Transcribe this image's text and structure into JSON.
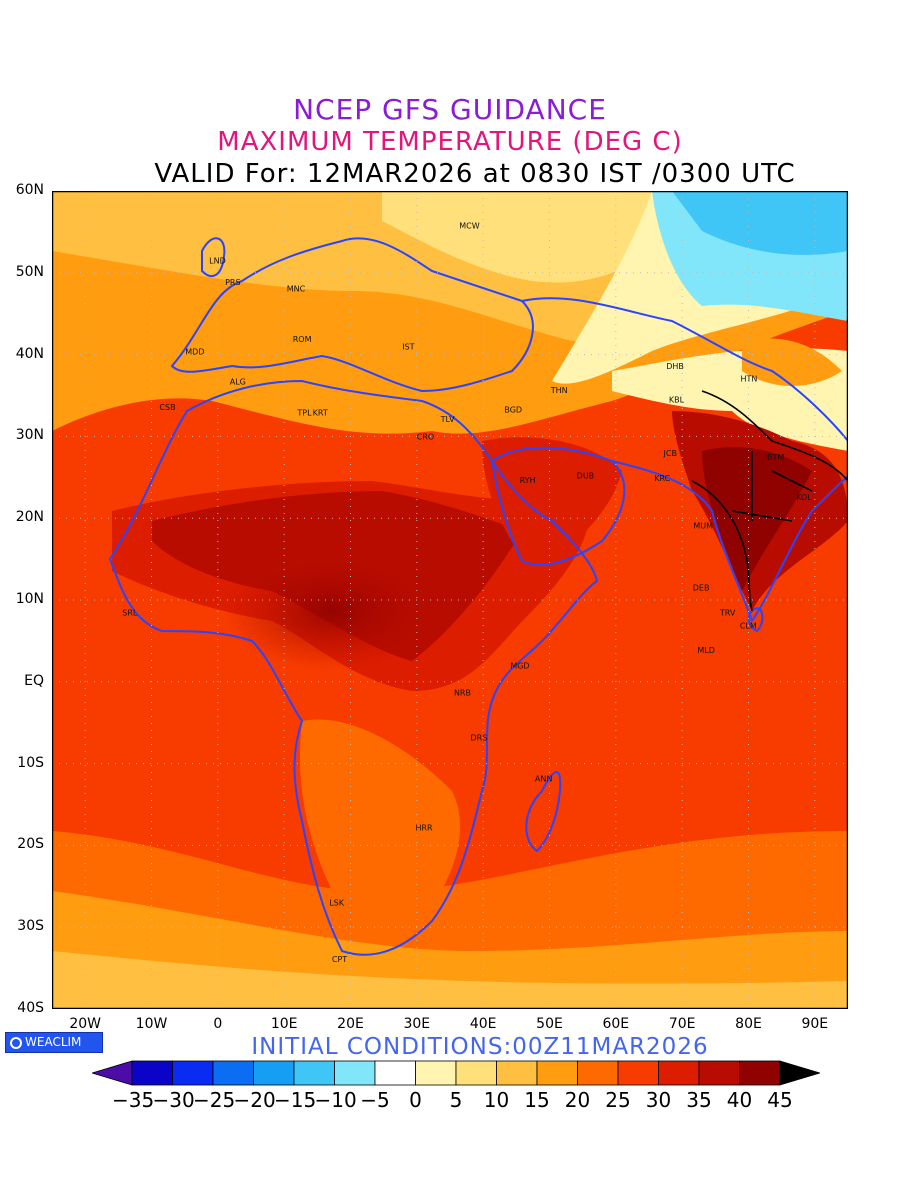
{
  "title": {
    "line1": "NCEP GFS GUIDANCE",
    "line2": "MAXIMUM TEMPERATURE (DEG C)",
    "line3": "VALID For: 12MAR2026 at 0830 IST /0300 UTC",
    "line1_color": "#8a1bd6",
    "line2_color": "#e3157c"
  },
  "axes": {
    "lat_labels": [
      "60N",
      "50N",
      "40N",
      "30N",
      "20N",
      "10N",
      "EQ",
      "10S",
      "20S",
      "30S",
      "40S"
    ],
    "lon_labels": [
      "20W",
      "10W",
      "0",
      "10E",
      "20E",
      "30E",
      "40E",
      "50E",
      "60E",
      "70E",
      "80E",
      "90E"
    ],
    "lat_range": [
      -40,
      60
    ],
    "lon_range": [
      -25,
      95
    ]
  },
  "cities": [
    {
      "label": "MCW",
      "lon": 37.6,
      "lat": 55.8
    },
    {
      "label": "LND",
      "lon": -0.1,
      "lat": 51.5
    },
    {
      "label": "PRS",
      "lon": 2.3,
      "lat": 48.9
    },
    {
      "label": "MNC",
      "lon": 11.6,
      "lat": 48.1
    },
    {
      "label": "ROM",
      "lon": 12.5,
      "lat": 41.9
    },
    {
      "label": "MDD",
      "lon": -3.7,
      "lat": 40.4
    },
    {
      "label": "IST",
      "lon": 29.0,
      "lat": 41.0
    },
    {
      "label": "ALG",
      "lon": 3.0,
      "lat": 36.7
    },
    {
      "label": "CSB",
      "lon": -7.6,
      "lat": 33.6
    },
    {
      "label": "TPL",
      "lon": 13.2,
      "lat": 32.9
    },
    {
      "label": "KRT",
      "lon": 15.5,
      "lat": 32.9
    },
    {
      "label": "TLV",
      "lon": 34.8,
      "lat": 32.1
    },
    {
      "label": "CRO",
      "lon": 31.2,
      "lat": 30.0
    },
    {
      "label": "BGD",
      "lon": 44.4,
      "lat": 33.3
    },
    {
      "label": "THN",
      "lon": 51.4,
      "lat": 35.7
    },
    {
      "label": "DHB",
      "lon": 68.8,
      "lat": 38.6
    },
    {
      "label": "HTN",
      "lon": 80.0,
      "lat": 37.1
    },
    {
      "label": "KBL",
      "lon": 69.2,
      "lat": 34.5
    },
    {
      "label": "RYH",
      "lon": 46.7,
      "lat": 24.7
    },
    {
      "label": "DUB",
      "lon": 55.3,
      "lat": 25.2
    },
    {
      "label": "KRC",
      "lon": 67.0,
      "lat": 24.9
    },
    {
      "label": "JCB",
      "lon": 68.4,
      "lat": 28.0
    },
    {
      "label": "BTM",
      "lon": 84.0,
      "lat": 27.5
    },
    {
      "label": "KOL",
      "lon": 88.4,
      "lat": 22.6
    },
    {
      "label": "MUM",
      "lon": 72.9,
      "lat": 19.1
    },
    {
      "label": "DEB",
      "lon": 72.8,
      "lat": 11.5
    },
    {
      "label": "TRV",
      "lon": 76.9,
      "lat": 8.5
    },
    {
      "label": "CLM",
      "lon": 79.9,
      "lat": 6.9
    },
    {
      "label": "MLD",
      "lon": 73.5,
      "lat": 3.9
    },
    {
      "label": "SRL",
      "lon": -13.2,
      "lat": 8.5
    },
    {
      "label": "MGD",
      "lon": 45.3,
      "lat": 2.0
    },
    {
      "label": "NRB",
      "lon": 36.8,
      "lat": -1.3
    },
    {
      "label": "DRS",
      "lon": 39.3,
      "lat": -6.8
    },
    {
      "label": "ANN",
      "lon": 49.0,
      "lat": -11.8
    },
    {
      "label": "HRR",
      "lon": 31.0,
      "lat": -17.8
    },
    {
      "label": "LSK",
      "lon": 18.0,
      "lat": -27.0
    },
    {
      "label": "CPT",
      "lon": 18.4,
      "lat": -33.9
    }
  ],
  "legend": {
    "init_text": "INITIAL CONDITIONS:00Z11MAR2026",
    "init_color": "#4466ee",
    "logo_text": "WEACLIM",
    "ticks": [
      "−35",
      "−30",
      "−25",
      "−20",
      "−15",
      "−10",
      "−5",
      "0",
      "5",
      "10",
      "15",
      "20",
      "25",
      "30",
      "35",
      "40",
      "45"
    ],
    "colors": [
      "#4b0ca8",
      "#0a04c8",
      "#0a2cf2",
      "#0b6ef2",
      "#169ef5",
      "#3fc6f7",
      "#82e6fb",
      "#ffffff",
      "#fff5b0",
      "#ffe07a",
      "#ffbf40",
      "#ff9c10",
      "#ff6a00",
      "#f83c00",
      "#dd1d00",
      "#b80c00",
      "#8f0200",
      "#000000"
    ]
  }
}
